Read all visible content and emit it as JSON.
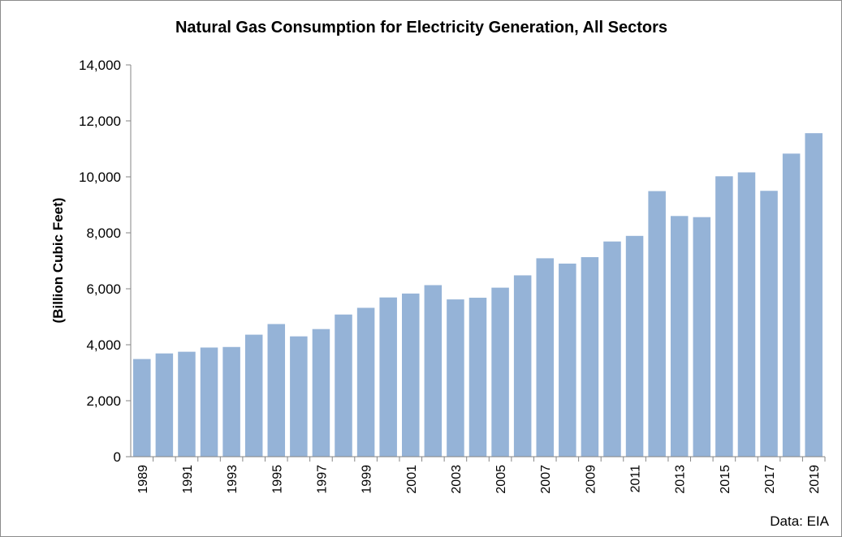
{
  "chart_data": {
    "type": "bar",
    "title": "Natural Gas Consumption for Electricity Generation, All Sectors",
    "ylabel": "(Billion Cubic Feet)",
    "xlabel": "",
    "source": "Data: EIA",
    "ylim": [
      0,
      14000
    ],
    "yticks": [
      0,
      2000,
      4000,
      6000,
      8000,
      10000,
      12000,
      14000
    ],
    "ytick_labels": [
      "0",
      "2,000",
      "4,000",
      "6,000",
      "8,000",
      "10,000",
      "12,000",
      "14,000"
    ],
    "categories": [
      "1989",
      "1990",
      "1991",
      "1992",
      "1993",
      "1994",
      "1995",
      "1996",
      "1997",
      "1998",
      "1999",
      "2000",
      "2001",
      "2002",
      "2003",
      "2004",
      "2005",
      "2006",
      "2007",
      "2008",
      "2009",
      "2010",
      "2011",
      "2012",
      "2013",
      "2014",
      "2015",
      "2016",
      "2017",
      "2018",
      "2019"
    ],
    "xtick_labels": [
      "1989",
      "",
      "1991",
      "",
      "1993",
      "",
      "1995",
      "",
      "1997",
      "",
      "1999",
      "",
      "2001",
      "",
      "2003",
      "",
      "2005",
      "",
      "2007",
      "",
      "2009",
      "",
      "2011",
      "",
      "2013",
      "",
      "2015",
      "",
      "2017",
      "",
      "2019"
    ],
    "values": [
      3490,
      3690,
      3750,
      3900,
      3920,
      4360,
      4740,
      4300,
      4560,
      5080,
      5320,
      5690,
      5830,
      6130,
      5620,
      5680,
      6040,
      6480,
      7090,
      6900,
      7130,
      7690,
      7890,
      9490,
      8600,
      8560,
      10020,
      10160,
      9500,
      10830,
      11560
    ],
    "grid": false,
    "legend": "none",
    "colors": {
      "bar": "#95b3d7",
      "axis": "#868686"
    }
  }
}
